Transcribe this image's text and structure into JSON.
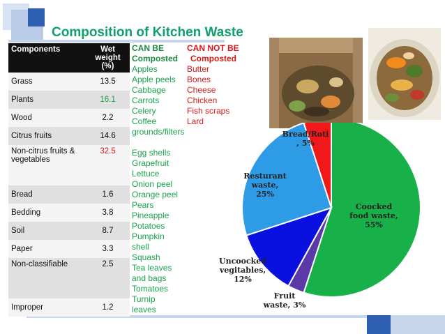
{
  "slide": {
    "title": "Composition of Kitchen Waste"
  },
  "table": {
    "header": {
      "components": "Components",
      "wet_weight": "Wet  weight (%)"
    },
    "rows": [
      {
        "component": "Grass",
        "value": "13.5",
        "value_color": "#111111"
      },
      {
        "component": "Plants",
        "value": "16.1",
        "value_color": "#1aa34a"
      },
      {
        "component": "Wood",
        "value": "2.2",
        "value_color": "#111111"
      },
      {
        "component": "Citrus fruits",
        "value": "14.6",
        "value_color": "#111111"
      },
      {
        "component": "Non-citrus fruits & vegetables",
        "value": "32.5",
        "value_color": "#d81818"
      },
      {
        "component": "Bread",
        "value": "1.6",
        "value_color": "#111111"
      },
      {
        "component": "Bedding",
        "value": "3.8",
        "value_color": "#111111"
      },
      {
        "component": "Soil",
        "value": "8.7",
        "value_color": "#111111"
      },
      {
        "component": "Paper",
        "value": "3.3",
        "value_color": "#111111"
      },
      {
        "component": "Non-classifiable",
        "value": "2.5",
        "value_color": "#111111"
      },
      {
        "component": "Improper",
        "value": "1.2",
        "value_color": "#111111"
      }
    ]
  },
  "can_be_composted": {
    "header_line1": "CAN BE",
    "header_line2": "Composted",
    "items_a": [
      "Apples",
      "Apple peels",
      "Cabbage",
      "Carrots",
      "Celery",
      "Coffee",
      "grounds/filters"
    ],
    "items_b": [
      "Egg shells",
      "Grapefruit",
      "Lettuce",
      "Onion peel",
      "Orange peel",
      "Pears",
      "Pineapple",
      "Potatoes",
      "Pumpkin",
      "shell",
      "Squash",
      "Tea leaves",
      "and bags",
      "Tomatoes",
      "Turnip",
      "leaves"
    ]
  },
  "can_not_be_composted": {
    "header_line1": "CAN NOT BE",
    "header_line2": "Composted",
    "items": [
      "Butter",
      "Bones",
      "Cheese",
      "Chicken",
      "Fish scraps",
      "Lard"
    ]
  },
  "chart_data": {
    "type": "pie",
    "slices": [
      {
        "label": "Coocked food waste",
        "value": 55,
        "color": "#18b048",
        "text_lines": [
          "Coocked",
          "food waste,",
          "55%"
        ]
      },
      {
        "label": "Fruit waste",
        "value": 3,
        "color": "#5b3aa8",
        "text_lines": [
          "Fruit",
          "waste, 3%"
        ]
      },
      {
        "label": "Uncoocked vegitables",
        "value": 12,
        "color": "#0a10e0",
        "text_lines": [
          "Uncoocked",
          "vegitables,",
          "12%"
        ]
      },
      {
        "label": "Resturant waste",
        "value": 25,
        "color": "#2e9be6",
        "text_lines": [
          "Resturant",
          "waste,",
          "25%"
        ]
      },
      {
        "label": "Bread/Roti",
        "value": 5,
        "color": "#f01818",
        "text_lines": [
          "Bread/Roti",
          ", 5%"
        ]
      }
    ]
  }
}
